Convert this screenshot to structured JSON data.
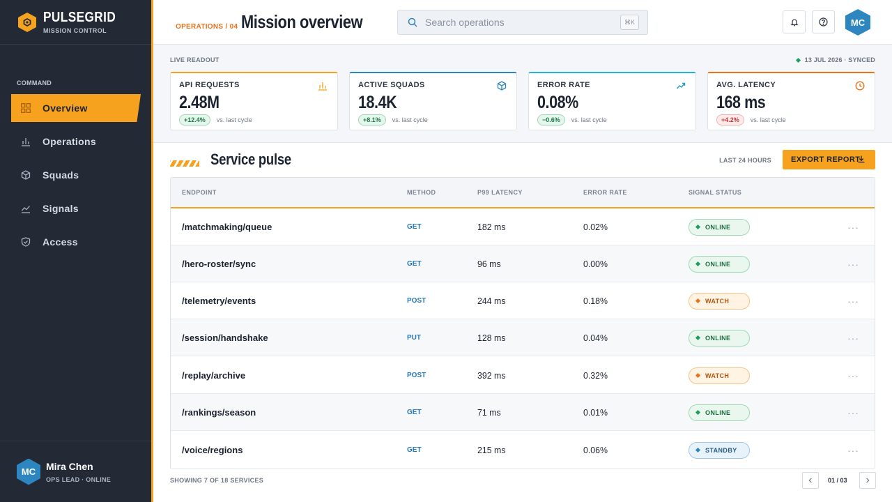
{
  "brand": {
    "name": "PULSEGRID",
    "subtitle": "MISSION CONTROL"
  },
  "nav": {
    "section_label": "COMMAND",
    "items": [
      {
        "label": "Overview",
        "icon": "grid-icon",
        "active": true
      },
      {
        "label": "Operations",
        "icon": "bar-chart-icon",
        "active": false
      },
      {
        "label": "Squads",
        "icon": "hexagon-box-icon",
        "active": false
      },
      {
        "label": "Signals",
        "icon": "trend-line-icon",
        "active": false
      },
      {
        "label": "Access",
        "icon": "shield-check-icon",
        "active": false
      }
    ]
  },
  "user": {
    "initials": "MC",
    "name": "Mira Chen",
    "role": "OPS LEAD · ONLINE"
  },
  "topbar": {
    "breadcrumb": "OPERATIONS / 04",
    "title": "Mission overview",
    "search_placeholder": "Search operations",
    "search_shortcut": "⌘K",
    "avatar_initials": "MC"
  },
  "readout": {
    "label": "LIVE READOUT",
    "sync_status": "13 JUL 2026 · SYNCED",
    "stats": [
      {
        "label": "API REQUESTS",
        "value": "2.48M",
        "delta": "+12.4%",
        "delta_kind": "good",
        "note": "vs. last cycle",
        "accent": "#f6a21e",
        "icon": "bar-chart-icon"
      },
      {
        "label": "ACTIVE SQUADS",
        "value": "18.4K",
        "delta": "+8.1%",
        "delta_kind": "good",
        "note": "vs. last cycle",
        "accent": "#2e86c1",
        "icon": "hexagon-box-icon"
      },
      {
        "label": "ERROR RATE",
        "value": "0.08%",
        "delta": "−0.6%",
        "delta_kind": "good",
        "note": "vs. last cycle",
        "accent": "#22b5d6",
        "icon": "trend-line-icon"
      },
      {
        "label": "AVG. LATENCY",
        "value": "168 ms",
        "delta": "+4.2%",
        "delta_kind": "bad",
        "note": "vs. last cycle",
        "accent": "#e8731b",
        "icon": "clock-icon"
      }
    ]
  },
  "service": {
    "title": "Service pulse",
    "range": "LAST 24 HOURS",
    "export_label": "EXPORT REPORT",
    "columns": [
      "ENDPOINT",
      "METHOD",
      "P99 LATENCY",
      "ERROR RATE",
      "SIGNAL STATUS"
    ],
    "rows": [
      {
        "endpoint": "/matchmaking/queue",
        "method": "GET",
        "latency": "182 ms",
        "error_rate": "0.02%",
        "status": "ONLINE",
        "status_kind": "online"
      },
      {
        "endpoint": "/hero-roster/sync",
        "method": "GET",
        "latency": "96 ms",
        "error_rate": "0.00%",
        "status": "ONLINE",
        "status_kind": "online"
      },
      {
        "endpoint": "/telemetry/events",
        "method": "POST",
        "latency": "244 ms",
        "error_rate": "0.18%",
        "status": "WATCH",
        "status_kind": "watch"
      },
      {
        "endpoint": "/session/handshake",
        "method": "PUT",
        "latency": "128 ms",
        "error_rate": "0.04%",
        "status": "ONLINE",
        "status_kind": "online"
      },
      {
        "endpoint": "/replay/archive",
        "method": "POST",
        "latency": "392 ms",
        "error_rate": "0.32%",
        "status": "WATCH",
        "status_kind": "watch"
      },
      {
        "endpoint": "/rankings/season",
        "method": "GET",
        "latency": "71 ms",
        "error_rate": "0.01%",
        "status": "ONLINE",
        "status_kind": "online"
      },
      {
        "endpoint": "/voice/regions",
        "method": "GET",
        "latency": "215 ms",
        "error_rate": "0.06%",
        "status": "STANDBY",
        "status_kind": "standby"
      }
    ],
    "more_glyph": "···",
    "showing": "SHOWING 7 OF 18 SERVICES",
    "page": "01 / 03"
  }
}
